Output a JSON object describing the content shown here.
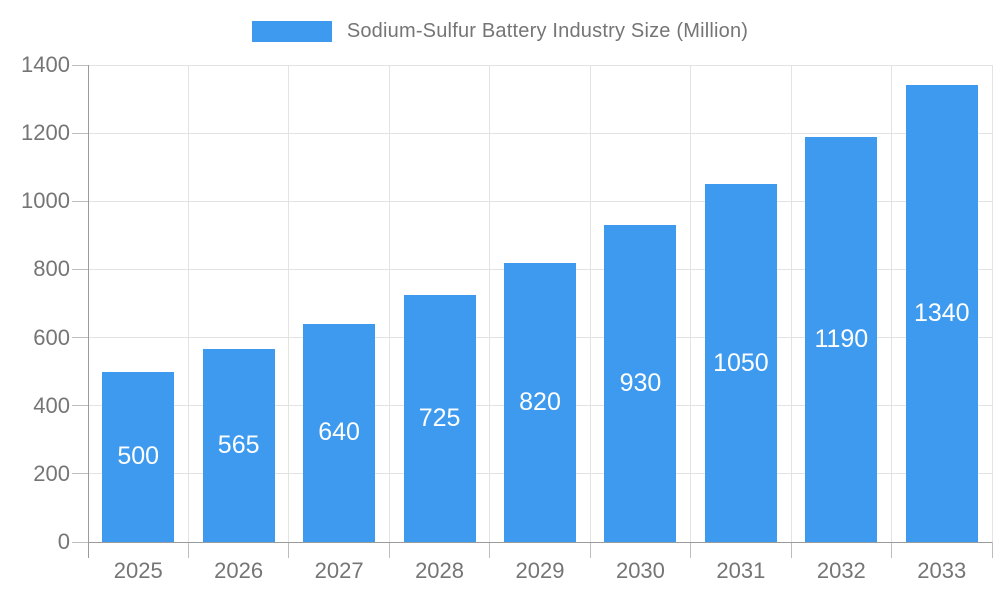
{
  "legend": {
    "label": "Sodium-Sulfur Battery Industry Size (Million)"
  },
  "chart_data": {
    "type": "bar",
    "title": "Sodium-Sulfur Battery Industry Size (Million)",
    "categories": [
      "2025",
      "2026",
      "2027",
      "2028",
      "2029",
      "2030",
      "2031",
      "2032",
      "2033"
    ],
    "values": [
      500,
      565,
      640,
      725,
      820,
      930,
      1050,
      1190,
      1340
    ],
    "xlabel": "",
    "ylabel": "",
    "ylim": [
      0,
      1400
    ],
    "yticks": [
      0,
      200,
      400,
      600,
      800,
      1000,
      1200,
      1400
    ],
    "grid": true,
    "legend_position": "top",
    "bar_color": "#3D9AEF",
    "bar_label_color": "#ffffff",
    "axis_label_color": "#757575"
  }
}
